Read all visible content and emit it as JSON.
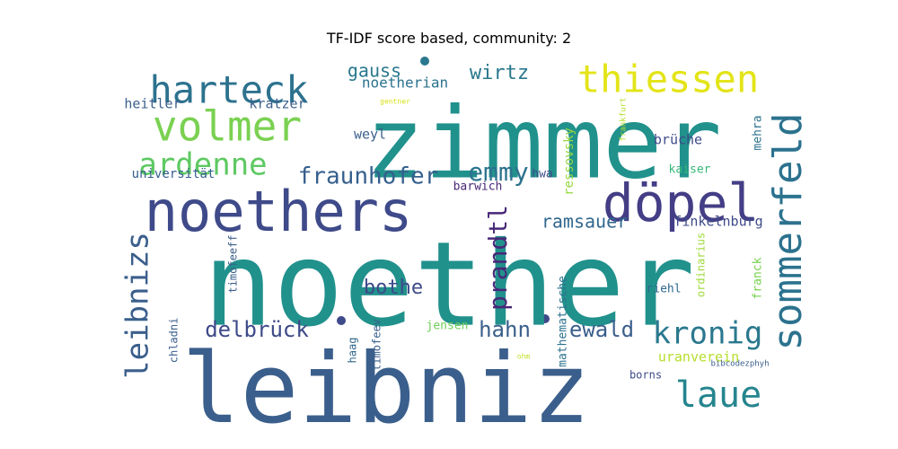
{
  "chart_data": {
    "type": "wordcloud",
    "title": "TF-IDF score based, community: 2",
    "words": [
      {
        "text": "noether",
        "weight": 1.0,
        "color": "#21918c",
        "orient": "h"
      },
      {
        "text": "leibniz",
        "weight": 0.9,
        "color": "#3b5f8c",
        "orient": "h"
      },
      {
        "text": "zimmer",
        "weight": 0.86,
        "color": "#21918c",
        "orient": "h"
      },
      {
        "text": "noethers",
        "weight": 0.66,
        "color": "#3e4a89",
        "orient": "h"
      },
      {
        "text": "döpel",
        "weight": 0.6,
        "color": "#433e85",
        "orient": "h"
      },
      {
        "text": "sommerfeld",
        "weight": 0.5,
        "color": "#2c728e",
        "orient": "v"
      },
      {
        "text": "volmer",
        "weight": 0.48,
        "color": "#7ad151",
        "orient": "h"
      },
      {
        "text": "harteck",
        "weight": 0.46,
        "color": "#2c728e",
        "orient": "h"
      },
      {
        "text": "thiessen",
        "weight": 0.44,
        "color": "#e3e418",
        "orient": "h"
      },
      {
        "text": "laue",
        "weight": 0.42,
        "color": "#25858e",
        "orient": "h"
      },
      {
        "text": "leibnizs",
        "weight": 0.38,
        "color": "#3b5f8c",
        "orient": "v"
      },
      {
        "text": "ardenne",
        "weight": 0.36,
        "color": "#5ec962",
        "orient": "h"
      },
      {
        "text": "kronig",
        "weight": 0.34,
        "color": "#2a788e",
        "orient": "h"
      },
      {
        "text": "emmy",
        "weight": 0.32,
        "color": "#2c728e",
        "orient": "h"
      },
      {
        "text": "prandtl",
        "weight": 0.3,
        "color": "#482878",
        "orient": "v"
      },
      {
        "text": "fraunhofer",
        "weight": 0.28,
        "color": "#355f8d",
        "orient": "h"
      },
      {
        "text": "delbrück",
        "weight": 0.26,
        "color": "#3e4a89",
        "orient": "h"
      },
      {
        "text": "hahn",
        "weight": 0.26,
        "color": "#3b5f8c",
        "orient": "h"
      },
      {
        "text": "ewald",
        "weight": 0.26,
        "color": "#3b5f8c",
        "orient": "h"
      },
      {
        "text": "bothe",
        "weight": 0.24,
        "color": "#3e4a89",
        "orient": "h"
      },
      {
        "text": "wirtz",
        "weight": 0.22,
        "color": "#2a788e",
        "orient": "h"
      },
      {
        "text": "gauss",
        "weight": 0.2,
        "color": "#2a788e",
        "orient": "h"
      },
      {
        "text": "ramsauer",
        "weight": 0.2,
        "color": "#31688e",
        "orient": "h"
      },
      {
        "text": "noetherian",
        "weight": 0.16,
        "color": "#2c728e",
        "orient": "h"
      },
      {
        "text": "kratzer",
        "weight": 0.15,
        "color": "#3b5f8c",
        "orient": "h"
      },
      {
        "text": "heitler",
        "weight": 0.15,
        "color": "#3b5f8c",
        "orient": "h"
      },
      {
        "text": "weyl",
        "weight": 0.15,
        "color": "#3b5f8c",
        "orient": "h"
      },
      {
        "text": "universität",
        "weight": 0.14,
        "color": "#355f8d",
        "orient": "h"
      },
      {
        "text": "brüche",
        "weight": 0.15,
        "color": "#3e4a89",
        "orient": "h"
      },
      {
        "text": "ressovsky",
        "weight": 0.14,
        "color": "#95d840",
        "orient": "v"
      },
      {
        "text": "frankfurt",
        "weight": 0.09,
        "color": "#b5de2b",
        "orient": "v"
      },
      {
        "text": "mehra",
        "weight": 0.13,
        "color": "#2c728e",
        "orient": "v"
      },
      {
        "text": "kaiser",
        "weight": 0.13,
        "color": "#35b779",
        "orient": "h"
      },
      {
        "text": "hwa",
        "weight": 0.13,
        "color": "#3e4a89",
        "orient": "h"
      },
      {
        "text": "barwich",
        "weight": 0.13,
        "color": "#482878",
        "orient": "h"
      },
      {
        "text": "finkelnburg",
        "weight": 0.15,
        "color": "#3e4a89",
        "orient": "h"
      },
      {
        "text": "timofeeff",
        "weight": 0.12,
        "color": "#3b5f8c",
        "orient": "v"
      },
      {
        "text": "ordinarius",
        "weight": 0.12,
        "color": "#a0da39",
        "orient": "v"
      },
      {
        "text": "franck",
        "weight": 0.13,
        "color": "#7ad151",
        "orient": "v"
      },
      {
        "text": "mathematische",
        "weight": 0.13,
        "color": "#2c728e",
        "orient": "v"
      },
      {
        "text": "riehl",
        "weight": 0.13,
        "color": "#31688e",
        "orient": "h"
      },
      {
        "text": "chladni",
        "weight": 0.12,
        "color": "#3b5f8c",
        "orient": "v"
      },
      {
        "text": "jensen",
        "weight": 0.13,
        "color": "#6ece58",
        "orient": "h"
      },
      {
        "text": "timofeev",
        "weight": 0.12,
        "color": "#3b5f8c",
        "orient": "v"
      },
      {
        "text": "haag",
        "weight": 0.12,
        "color": "#31688e",
        "orient": "v"
      },
      {
        "text": "uranverein",
        "weight": 0.15,
        "color": "#b5de2b",
        "orient": "h"
      },
      {
        "text": "borns",
        "weight": 0.12,
        "color": "#3e4a89",
        "orient": "h"
      },
      {
        "text": "bibcodezphyh",
        "weight": 0.09,
        "color": "#3b5f8c",
        "orient": "h"
      },
      {
        "text": "ohm",
        "weight": 0.08,
        "color": "#c2df23",
        "orient": "h"
      },
      {
        "text": "gentner",
        "weight": 0.08,
        "color": "#d8e219",
        "orient": "h"
      }
    ]
  }
}
